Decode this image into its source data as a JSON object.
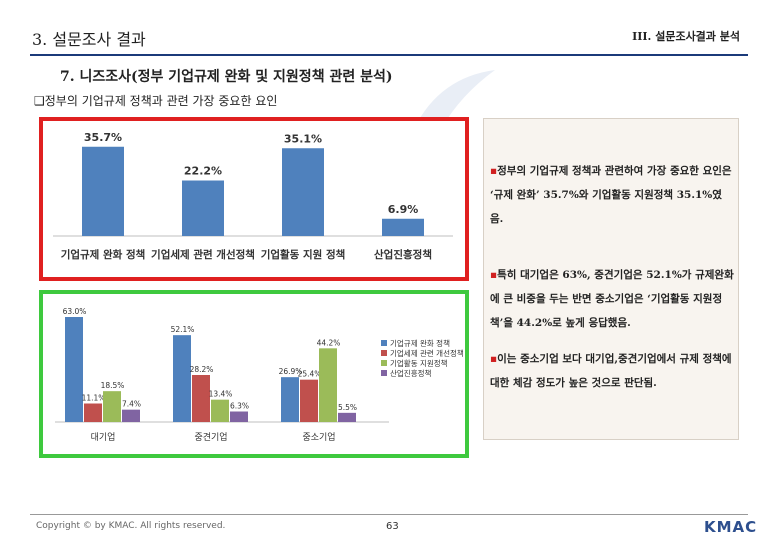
{
  "header": {
    "title": "3. 설문조사 결과",
    "section": "III. 설문조사결과 분석"
  },
  "subtitle": "7. 니즈조사(정부 기업규제 완화 및 지원정책 관련 분석)",
  "bullet_title": "❑정부의 기업규제 정책과 관련 가장 중요한 요인",
  "text_panel": {
    "para1": "정부의 기업규제 정책과 관련하여 가장 중요한 요인은 ‘규제 완화’ 35.7%와 기업활동 지원정책 35.1%였음.",
    "para2": "특히 대기업은 63%, 중견기업은 52.1%가 규제완화에 큰 비중을 두는 반면 중소기업은 ‘기업활동 지원정책’을 44.2%로 높게 응답했음.",
    "para3": "이는 중소기업 보다 대기업,중견기업에서 규제 정책에 대한 체감 정도가 높은 것으로 판단됨.",
    "marker": "▪"
  },
  "footer": {
    "copyright": "Copyright © by KMAC. All rights reserved.",
    "page": "63",
    "logo": "KMAC"
  },
  "colors": {
    "bar_blue": "#4f81bd",
    "bar_red": "#c0504d",
    "bar_green": "#9bbb59",
    "bar_purple": "#8064a2",
    "frame_red": "#e02020",
    "frame_green": "#3ec93e"
  },
  "chart_data": [
    {
      "type": "bar",
      "title": "",
      "categories": [
        "기업규제 완화 정책",
        "기업세제 관련 개선정책",
        "기업활동 지원 정책",
        "산업진흥정책"
      ],
      "values": [
        35.7,
        22.2,
        35.1,
        6.9
      ],
      "value_labels": [
        "35.7%",
        "22.2%",
        "35.1%",
        "6.9%"
      ],
      "ylim": [
        0,
        40
      ]
    },
    {
      "type": "bar",
      "categories": [
        "대기업",
        "중견기업",
        "중소기업"
      ],
      "series": [
        {
          "name": "기업규제 완화 정책",
          "values": [
            63.0,
            52.1,
            26.9
          ],
          "labels": [
            "63.0%",
            "52.1%",
            "26.9%"
          ]
        },
        {
          "name": "기업세제 관련 개선정책",
          "values": [
            11.1,
            28.2,
            25.4
          ],
          "labels": [
            "11.1%",
            "28.2%",
            "25.4%"
          ]
        },
        {
          "name": "기업활동 지원정책",
          "values": [
            18.5,
            13.4,
            44.2
          ],
          "labels": [
            "18.5%",
            "13.4%",
            "44.2%"
          ]
        },
        {
          "name": "산업진흥정책",
          "values": [
            7.4,
            6.3,
            5.5
          ],
          "labels": [
            "7.4%",
            "6.3%",
            "5.5%"
          ]
        }
      ],
      "ylim": [
        0,
        66
      ]
    }
  ]
}
